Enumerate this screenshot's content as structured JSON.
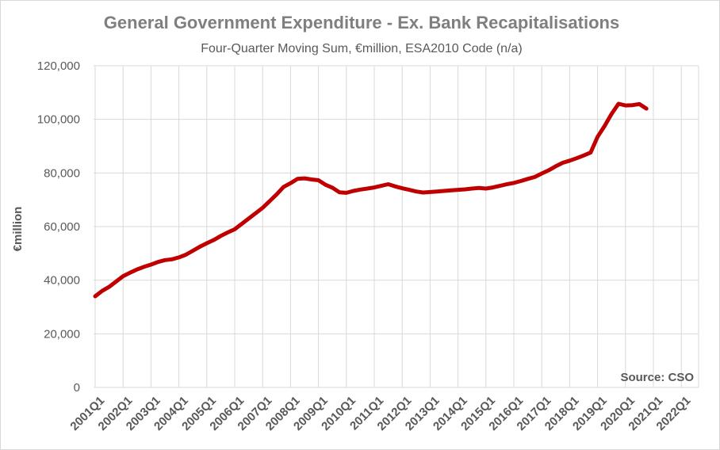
{
  "chart_data": {
    "type": "line",
    "title": "General Government Expenditure - Ex. Bank Recapitalisations",
    "subtitle": "Four-Quarter  Moving Sum, €million, ESA2010 Code  (n/a)",
    "ylabel": "€million",
    "xlabel": "",
    "source": "Source: CSO",
    "ylim": [
      0,
      120000
    ],
    "yticks": [
      0,
      20000,
      40000,
      60000,
      80000,
      100000,
      120000
    ],
    "ytick_labels": [
      "0",
      "20,000",
      "40,000",
      "60,000",
      "80,000",
      "100,000",
      "120,000"
    ],
    "xtick_labels": [
      "2001Q1",
      "2002Q1",
      "2003Q1",
      "2004Q1",
      "2005Q1",
      "2006Q1",
      "2007Q1",
      "2008Q1",
      "2009Q1",
      "2010Q1",
      "2011Q1",
      "2012Q1",
      "2013Q1",
      "2014Q1",
      "2015Q1",
      "2016Q1",
      "2017Q1",
      "2018Q1",
      "2019Q1",
      "2020Q1",
      "2021Q1",
      "2022Q1"
    ],
    "grid": true,
    "line_color": "#c00000",
    "series": [
      {
        "values": [
          34000,
          36000,
          37500,
          39500,
          41500,
          42800,
          44000,
          45000,
          45800,
          46800,
          47500,
          47800,
          48500,
          49500,
          51000,
          52500,
          53800,
          55000,
          56500,
          57800,
          59000,
          61000,
          63000,
          65000,
          67000,
          69500,
          72000,
          74800,
          76200,
          77800,
          78000,
          77600,
          77300,
          75600,
          74500,
          72800,
          72600,
          73300,
          73800,
          74200,
          74600,
          75200,
          75800,
          75000,
          74300,
          73700,
          73100,
          72700,
          72900,
          73100,
          73300,
          73500,
          73700,
          73900,
          74200,
          74400,
          74200,
          74600,
          75200,
          75800,
          76300,
          77000,
          77800,
          78500,
          79800,
          81000,
          82500,
          83800,
          84600,
          85500,
          86500,
          87600,
          93500,
          97500,
          102000,
          105800,
          105200,
          105300,
          105700,
          104000
        ]
      }
    ]
  }
}
